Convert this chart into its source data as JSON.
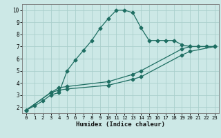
{
  "title": "",
  "xlabel": "Humidex (Indice chaleur)",
  "xlim": [
    -0.5,
    23.5
  ],
  "ylim": [
    1.5,
    10.5
  ],
  "xticks": [
    0,
    1,
    2,
    3,
    4,
    5,
    6,
    7,
    8,
    9,
    10,
    11,
    12,
    13,
    14,
    15,
    16,
    17,
    18,
    19,
    20,
    21,
    22,
    23
  ],
  "yticks": [
    2,
    3,
    4,
    5,
    6,
    7,
    8,
    9,
    10
  ],
  "background_color": "#cce8e6",
  "grid_color": "#aacfcc",
  "line_color": "#1e6e62",
  "line1_x": [
    0,
    1,
    2,
    3,
    4,
    5,
    6,
    7,
    8,
    9,
    10,
    11,
    12,
    13,
    14,
    15,
    16,
    17,
    18,
    19,
    20,
    21,
    22,
    23
  ],
  "line1_y": [
    1.75,
    2.1,
    2.5,
    3.0,
    3.2,
    5.0,
    5.9,
    6.7,
    7.5,
    8.5,
    9.3,
    10.0,
    10.0,
    9.8,
    8.55,
    7.5,
    7.5,
    7.5,
    7.5,
    7.15,
    7.0,
    7.0,
    7.0,
    7.0
  ],
  "line2_x": [
    0,
    3,
    4,
    5,
    10,
    13,
    14,
    19,
    20,
    23
  ],
  "line2_y": [
    1.75,
    3.2,
    3.4,
    3.5,
    3.8,
    4.3,
    4.5,
    6.3,
    6.6,
    7.0
  ],
  "line3_x": [
    0,
    3,
    4,
    5,
    10,
    13,
    14,
    19,
    20,
    23
  ],
  "line3_y": [
    1.75,
    3.2,
    3.6,
    3.7,
    4.1,
    4.7,
    5.0,
    6.8,
    7.0,
    7.0
  ],
  "marker_size": 2.5,
  "linewidth": 0.9
}
